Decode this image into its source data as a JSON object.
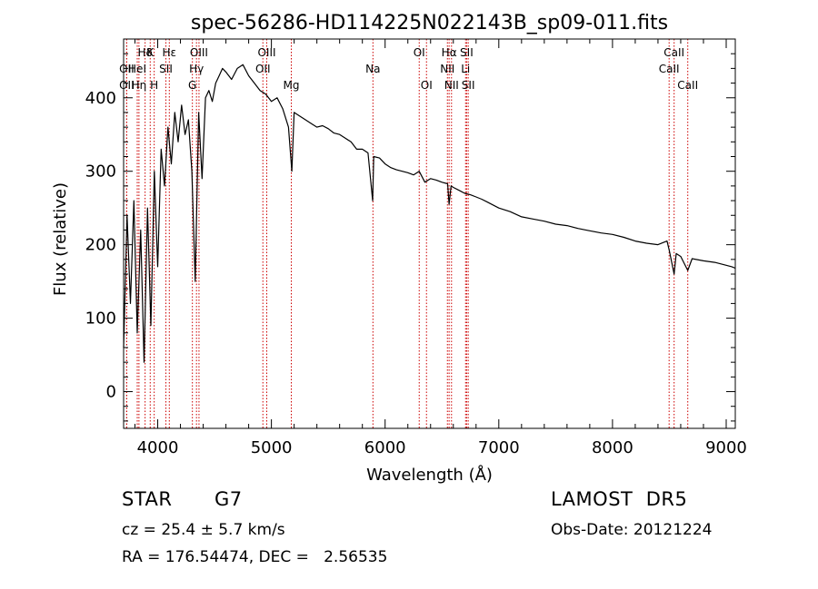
{
  "chart_data": {
    "type": "line",
    "title": "spec-56286-HD114225N022143B_sp09-011.fits",
    "xlabel": "Wavelength (Å)",
    "ylabel": "Flux (relative)",
    "xlim": [
      3700,
      9080
    ],
    "ylim": [
      -50,
      480
    ],
    "xticks": [
      4000,
      5000,
      6000,
      7000,
      8000,
      9000
    ],
    "yticks": [
      0,
      100,
      200,
      300,
      400
    ],
    "grid": false,
    "line_color": "#000000",
    "marker_color": "#cc0000",
    "spectral_lines": [
      {
        "label": "Hδ",
        "x": 3889,
        "row": 0
      },
      {
        "label": "K",
        "x": 3934,
        "row": 0
      },
      {
        "label": "Hε",
        "x": 4102,
        "row": 0
      },
      {
        "label": "OII",
        "x": 3727,
        "row": 1
      },
      {
        "label": "HeI",
        "x": 3820,
        "row": 1
      },
      {
        "label": "SII",
        "x": 4072,
        "row": 1
      },
      {
        "label": "OII",
        "x": 3727,
        "row": 2
      },
      {
        "label": "Hη",
        "x": 3835,
        "row": 2
      },
      {
        "label": "H",
        "x": 3969,
        "row": 2
      },
      {
        "label": "OIII",
        "x": 4363,
        "row": 0
      },
      {
        "label": "Hγ",
        "x": 4341,
        "row": 1
      },
      {
        "label": "G",
        "x": 4305,
        "row": 2
      },
      {
        "label": "OIII",
        "x": 4959,
        "row": 0
      },
      {
        "label": "OII",
        "x": 4925,
        "row": 1
      },
      {
        "label": "Mg",
        "x": 5175,
        "row": 2
      },
      {
        "label": "Na",
        "x": 5893,
        "row": 1
      },
      {
        "label": "OI",
        "x": 6300,
        "row": 0
      },
      {
        "label": "OI",
        "x": 6364,
        "row": 2
      },
      {
        "label": "Hα",
        "x": 6563,
        "row": 0
      },
      {
        "label": "NII",
        "x": 6548,
        "row": 1
      },
      {
        "label": "NII",
        "x": 6584,
        "row": 2
      },
      {
        "label": "SII",
        "x": 6717,
        "row": 0
      },
      {
        "label": "Li",
        "x": 6708,
        "row": 1
      },
      {
        "label": "SII",
        "x": 6731,
        "row": 2
      },
      {
        "label": "CaII",
        "x": 8542,
        "row": 0
      },
      {
        "label": "CaII",
        "x": 8498,
        "row": 1
      },
      {
        "label": "CaII",
        "x": 8662,
        "row": 2
      }
    ],
    "series": [
      {
        "x": [
          3700,
          3730,
          3760,
          3790,
          3820,
          3850,
          3880,
          3910,
          3940,
          3970,
          4000,
          4030,
          4060,
          4090,
          4120,
          4150,
          4180,
          4210,
          4240,
          4270,
          4300,
          4330,
          4360,
          4390,
          4420,
          4450,
          4480,
          4510,
          4540,
          4570,
          4600,
          4650,
          4700,
          4750,
          4800,
          4850,
          4900,
          4950,
          5000,
          5050,
          5100,
          5150,
          5180,
          5200,
          5250,
          5300,
          5350,
          5400,
          5450,
          5500,
          5550,
          5600,
          5650,
          5700,
          5750,
          5800,
          5850,
          5890,
          5900,
          5950,
          6000,
          6050,
          6100,
          6150,
          6200,
          6250,
          6300,
          6350,
          6400,
          6450,
          6500,
          6550,
          6563,
          6580,
          6600,
          6650,
          6700,
          6750,
          6800,
          6850,
          6900,
          7000,
          7100,
          7200,
          7300,
          7400,
          7500,
          7600,
          7700,
          7800,
          7900,
          8000,
          8100,
          8200,
          8300,
          8400,
          8480,
          8500,
          8542,
          8560,
          8600,
          8662,
          8700,
          8800,
          8900,
          9000,
          9050,
          9080
        ],
        "y": [
          60,
          240,
          120,
          260,
          80,
          220,
          40,
          250,
          90,
          300,
          170,
          330,
          280,
          360,
          310,
          380,
          340,
          390,
          350,
          370,
          300,
          150,
          380,
          290,
          400,
          410,
          395,
          420,
          430,
          440,
          435,
          425,
          440,
          445,
          430,
          420,
          410,
          405,
          395,
          400,
          385,
          360,
          300,
          380,
          375,
          370,
          365,
          360,
          362,
          358,
          352,
          350,
          345,
          340,
          330,
          330,
          325,
          260,
          320,
          318,
          310,
          305,
          302,
          300,
          298,
          295,
          300,
          285,
          290,
          288,
          285,
          283,
          255,
          280,
          278,
          274,
          270,
          268,
          265,
          262,
          258,
          250,
          245,
          238,
          235,
          232,
          228,
          226,
          222,
          219,
          216,
          214,
          210,
          205,
          202,
          200,
          205,
          192,
          160,
          188,
          184,
          165,
          181,
          178,
          176,
          172,
          170,
          168
        ]
      }
    ]
  },
  "info": {
    "object_class": "STAR",
    "subclass": "G7",
    "survey": "LAMOST  DR5",
    "redshift": "cz = 25.4 ± 5.7 km/s",
    "obs_date": "Obs-Date: 20121224",
    "coords": "RA = 176.54474, DEC =   2.56535"
  }
}
